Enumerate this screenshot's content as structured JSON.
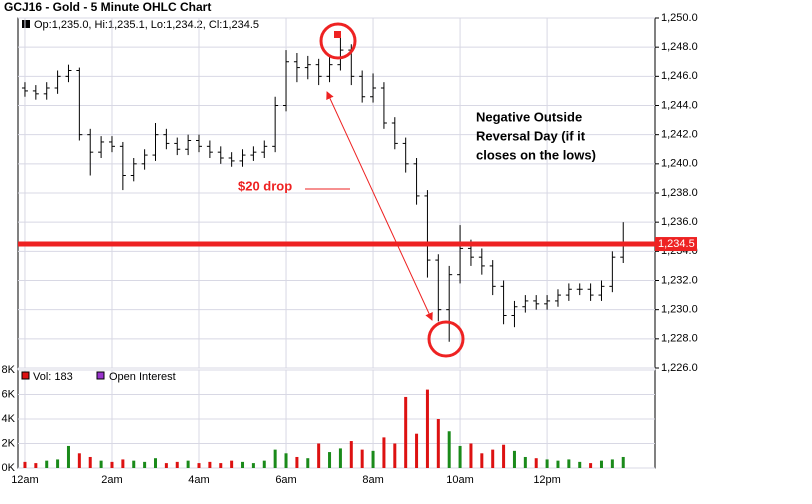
{
  "chart_data": {
    "type": "ohlc",
    "title": "GCJ16 - Gold - 5 Minute OHLC Chart",
    "legend_text": "Op:1,235.0, Hi:1,235.1, Lo:1,234.2, Cl:1,234.5",
    "x": [
      0,
      0.25,
      0.5,
      0.75,
      1,
      1.25,
      1.5,
      1.75,
      2,
      2.25,
      2.5,
      2.75,
      3,
      3.25,
      3.5,
      3.75,
      4,
      4.25,
      4.5,
      4.75,
      5,
      5.25,
      5.5,
      5.75,
      6,
      6.25,
      6.5,
      6.75,
      7,
      7.25,
      7.5,
      7.75,
      8,
      8.25,
      8.5,
      8.75,
      9,
      9.25,
      9.5,
      9.75,
      10,
      10.25,
      10.5,
      10.75,
      11,
      11.25,
      11.5,
      11.75,
      12,
      12.25,
      12.5,
      12.75,
      13,
      13.25,
      13.5,
      13.75
    ],
    "open": [
      1245.2,
      1245.0,
      1244.8,
      1245.2,
      1246.0,
      1246.4,
      1242.0,
      1240.8,
      1241.5,
      1241.2,
      1239.2,
      1240.0,
      1240.6,
      1242.0,
      1241.4,
      1241.0,
      1241.6,
      1241.2,
      1240.8,
      1240.4,
      1240.2,
      1240.6,
      1240.8,
      1241.2,
      1244.0,
      1247.0,
      1246.6,
      1246.8,
      1246.0,
      1246.8,
      1247.8,
      1246.0,
      1244.6,
      1245.2,
      1242.8,
      1241.4,
      1240.0,
      1237.8,
      1233.4,
      1230.0,
      1232.4,
      1234.2,
      1233.6,
      1233.0,
      1231.6,
      1229.6,
      1230.2,
      1230.6,
      1230.4,
      1230.6,
      1231.0,
      1231.4,
      1231.4,
      1231.0,
      1231.6,
      1233.6
    ],
    "high": [
      1245.6,
      1245.4,
      1245.6,
      1246.4,
      1246.8,
      1246.6,
      1242.4,
      1241.9,
      1241.9,
      1241.5,
      1240.4,
      1241.0,
      1242.8,
      1242.4,
      1241.8,
      1242.0,
      1242.0,
      1241.6,
      1241.2,
      1240.8,
      1241.0,
      1241.2,
      1241.6,
      1244.6,
      1247.8,
      1247.6,
      1247.4,
      1247.2,
      1247.4,
      1249.0,
      1248.2,
      1246.4,
      1246.2,
      1245.6,
      1243.2,
      1241.8,
      1240.4,
      1238.2,
      1233.8,
      1233.0,
      1235.8,
      1234.8,
      1234.2,
      1233.4,
      1232.0,
      1230.6,
      1231.0,
      1231.0,
      1231.0,
      1231.4,
      1231.8,
      1231.8,
      1231.8,
      1232.0,
      1234.0,
      1236.0
    ],
    "low": [
      1244.6,
      1244.4,
      1244.4,
      1244.8,
      1245.6,
      1241.6,
      1239.2,
      1240.4,
      1240.8,
      1238.2,
      1238.8,
      1239.6,
      1240.2,
      1241.0,
      1240.6,
      1240.6,
      1240.8,
      1240.4,
      1240.0,
      1239.8,
      1239.8,
      1240.2,
      1240.4,
      1240.8,
      1243.6,
      1245.6,
      1245.8,
      1245.4,
      1245.6,
      1246.4,
      1245.4,
      1244.2,
      1244.2,
      1242.4,
      1241.0,
      1239.4,
      1237.2,
      1232.2,
      1229.2,
      1227.8,
      1231.8,
      1233.0,
      1232.4,
      1231.0,
      1229.0,
      1228.8,
      1229.8,
      1230.0,
      1230.0,
      1230.2,
      1230.6,
      1231.0,
      1230.6,
      1230.6,
      1231.2,
      1233.2
    ],
    "close": [
      1245.0,
      1244.8,
      1245.2,
      1246.0,
      1246.4,
      1242.0,
      1240.8,
      1241.5,
      1241.2,
      1239.2,
      1240.0,
      1240.6,
      1242.0,
      1241.4,
      1241.0,
      1241.6,
      1241.2,
      1240.8,
      1240.4,
      1240.2,
      1240.6,
      1240.8,
      1241.2,
      1244.0,
      1247.0,
      1246.6,
      1246.8,
      1246.0,
      1246.8,
      1247.8,
      1246.0,
      1244.6,
      1245.2,
      1242.8,
      1241.4,
      1240.0,
      1237.8,
      1233.4,
      1230.0,
      1232.4,
      1234.2,
      1233.6,
      1233.0,
      1231.6,
      1229.6,
      1230.2,
      1230.6,
      1230.4,
      1230.6,
      1231.0,
      1231.4,
      1231.4,
      1231.0,
      1231.6,
      1233.6,
      1234.5
    ],
    "bar_color": "#000000",
    "volume": [
      500,
      400,
      600,
      700,
      1800,
      1200,
      900,
      600,
      500,
      700,
      600,
      500,
      800,
      400,
      500,
      600,
      400,
      500,
      400,
      600,
      500,
      400,
      600,
      1500,
      1200,
      900,
      800,
      2000,
      1300,
      1600,
      2200,
      1500,
      1400,
      2500,
      2000,
      5800,
      2800,
      6400,
      4000,
      3000,
      1800,
      2000,
      1200,
      1500,
      1900,
      1400,
      900,
      800,
      700,
      600,
      700,
      500,
      400,
      600,
      700,
      900
    ],
    "up_color": "#1a8a1a",
    "down_color": "#dd1111",
    "volume_legend": "Vol: 183",
    "oi_legend": "Open Interest",
    "oi_color": "#9933cc",
    "xlim": [
      -0.16,
      14.48
    ],
    "xticks": [
      {
        "value": 0,
        "label": "12am"
      },
      {
        "value": 2,
        "label": "2am"
      },
      {
        "value": 4,
        "label": "4am"
      },
      {
        "value": 6,
        "label": "6am"
      },
      {
        "value": 8,
        "label": "8am"
      },
      {
        "value": 10,
        "label": "10am"
      },
      {
        "value": 12,
        "label": "12pm"
      }
    ],
    "ylim": [
      1226,
      1250
    ],
    "yticks": [
      {
        "value": 1226,
        "label": "1,226.0"
      },
      {
        "value": 1228,
        "label": "1,228.0"
      },
      {
        "value": 1230,
        "label": "1,230.0"
      },
      {
        "value": 1232,
        "label": "1,232.0"
      },
      {
        "value": 1234,
        "label": "1,234.0"
      },
      {
        "value": 1236,
        "label": "1,236.0"
      },
      {
        "value": 1238,
        "label": "1,238.0"
      },
      {
        "value": 1240,
        "label": "1,240.0"
      },
      {
        "value": 1242,
        "label": "1,242.0"
      },
      {
        "value": 1244,
        "label": "1,244.0"
      },
      {
        "value": 1246,
        "label": "1,246.0"
      },
      {
        "value": 1248,
        "label": "1,248.0"
      },
      {
        "value": 1250,
        "label": "1,250.0"
      }
    ],
    "volume_ylim": [
      0,
      8000
    ],
    "volume_yticks": [
      {
        "value": 0,
        "label": "0K"
      },
      {
        "value": 2000,
        "label": "2K"
      },
      {
        "value": 4000,
        "label": "4K"
      },
      {
        "value": 6000,
        "label": "6K"
      },
      {
        "value": 8000,
        "label": "8K"
      }
    ],
    "last_price": {
      "value": 1234.5,
      "label": "1,234.5",
      "color": "#ee2222"
    },
    "grid": true,
    "annotations": {
      "drop": "$20 drop",
      "reversal": [
        "Negative Outside",
        "Reversal Day (if it",
        "closes on the lows)"
      ]
    }
  }
}
